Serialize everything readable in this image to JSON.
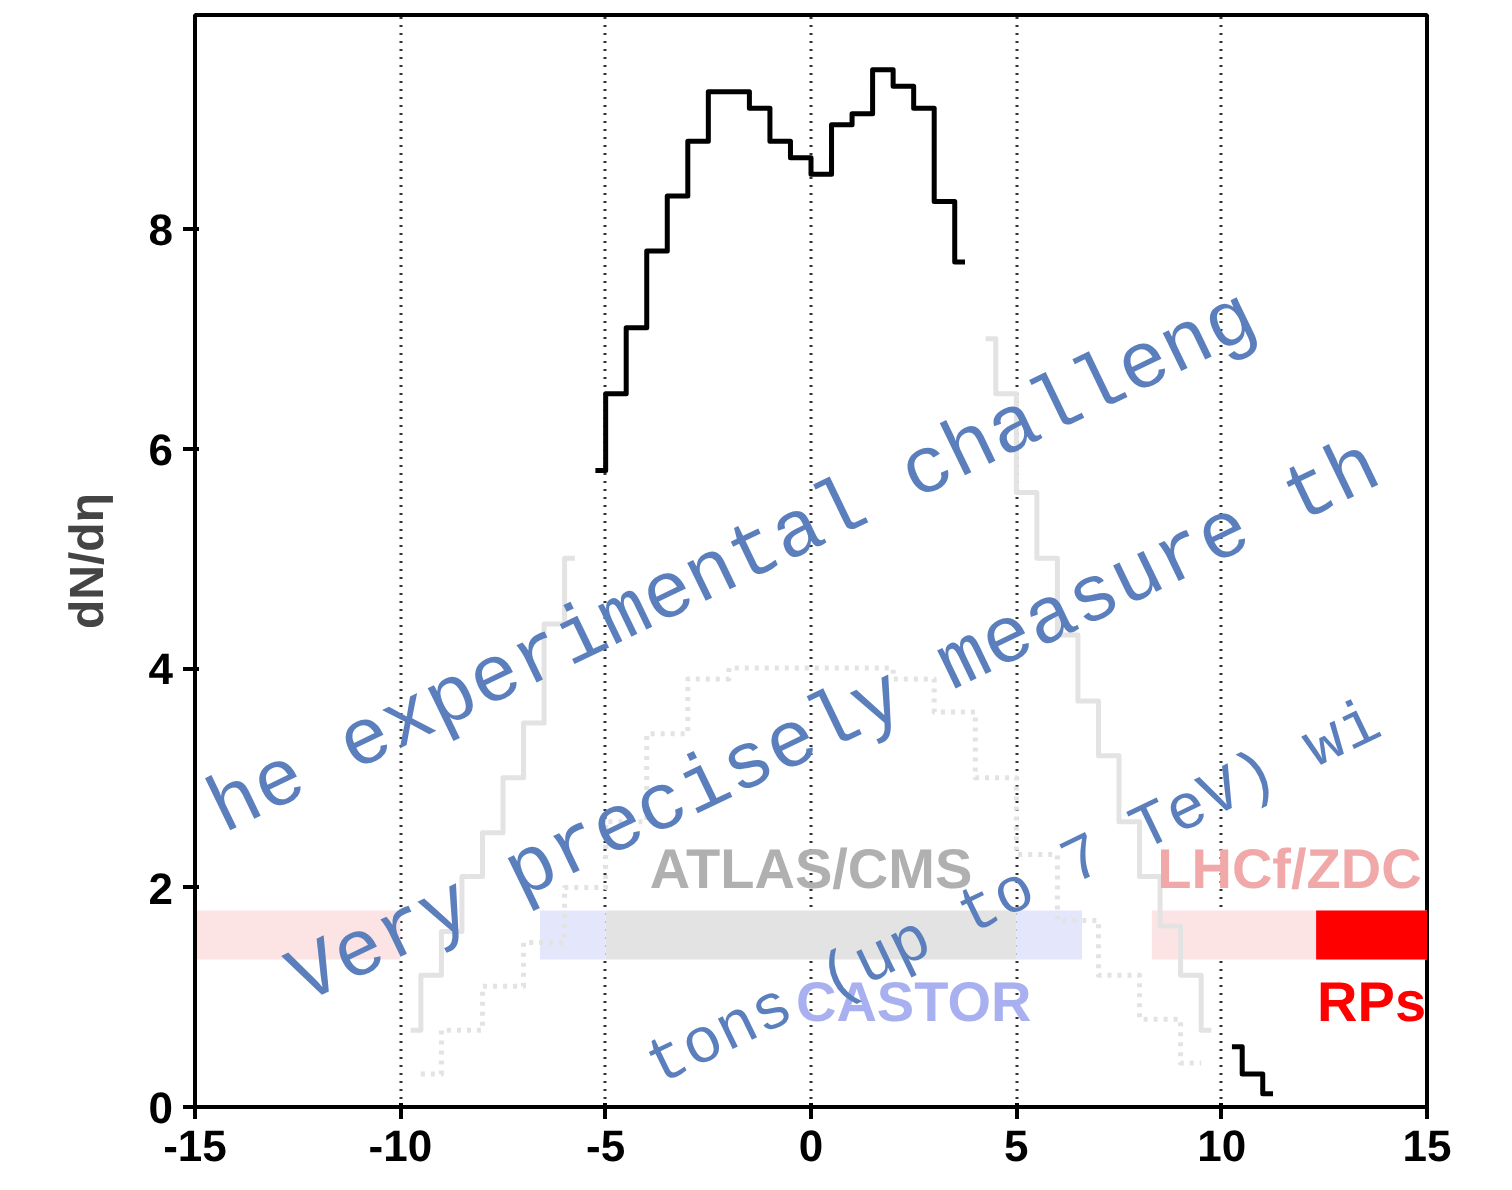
{
  "chart_data": {
    "type": "step",
    "ylabel": "dN/dη",
    "xlim": [
      -15,
      15
    ],
    "ylim": [
      0,
      9.95
    ],
    "xticks": [
      -15,
      -10,
      -5,
      0,
      5,
      10,
      15
    ],
    "yticks": [
      0,
      2,
      4,
      6,
      8
    ],
    "grid": "x",
    "series": [
      {
        "color": "#e3e3e3",
        "x": [
          -9.75,
          -9.25,
          -8.75,
          -8.25,
          -7.75,
          -7.25,
          -6.75,
          -6.25,
          -5.75,
          4.25,
          4.75,
          5.25,
          5.75,
          6.25,
          6.75,
          7.25,
          7.75,
          8.25,
          8.75,
          9.25,
          9.75
        ],
        "values": [
          0.7,
          1.2,
          1.6,
          2.1,
          2.5,
          3.0,
          3.5,
          4.4,
          5.0,
          7.0,
          6.5,
          5.6,
          5.0,
          4.3,
          3.7,
          3.2,
          2.6,
          2.1,
          1.65,
          1.2,
          0.7
        ]
      },
      {
        "color": "#e3e3e3",
        "line_style": "dotted",
        "x": [
          -9.5,
          -8.5,
          -7.5,
          -6.5,
          -5.5,
          -4.5,
          -3.5,
          -2.5,
          -1.5,
          -0.5,
          0.5,
          1.5,
          2.5,
          3.5,
          4.5,
          5.5,
          6.5,
          7.5,
          8.5,
          9.5
        ],
        "values": [
          0.3,
          0.7,
          1.1,
          1.5,
          2.0,
          2.6,
          3.4,
          3.9,
          4.0,
          4.0,
          4.0,
          4.0,
          3.9,
          3.6,
          3.0,
          2.3,
          1.7,
          1.2,
          0.8,
          0.4
        ]
      },
      {
        "color": "#000000",
        "x": [
          -5.25,
          -4.75,
          -4.25,
          -3.75,
          -3.25,
          -2.75,
          -2.25,
          -1.75,
          -1.25,
          -0.75,
          -0.25,
          0.25,
          0.75,
          1.25,
          1.75,
          2.25,
          2.75,
          3.25,
          3.75
        ],
        "values": [
          5.8,
          6.5,
          7.1,
          7.8,
          8.3,
          8.8,
          9.25,
          9.25,
          9.1,
          8.8,
          8.65,
          8.5,
          8.95,
          9.05,
          9.45,
          9.3,
          9.1,
          8.25,
          7.7
        ]
      },
      {
        "color": "#000000",
        "x": [
          10.25,
          10.75,
          11.25
        ],
        "values": [
          0.55,
          0.3,
          0.12
        ]
      }
    ],
    "bands": [
      {
        "axis": "x",
        "from": -15,
        "to": -10,
        "color": "#fde4e4"
      },
      {
        "axis": "x",
        "from": -6.6,
        "to": -5,
        "color": "#e4e6fb"
      },
      {
        "axis": "x",
        "from": -5,
        "to": 5,
        "color": "#e3e3e3",
        "label": "ATLAS/CMS"
      },
      {
        "axis": "x",
        "from": 5,
        "to": 6.6,
        "color": "#e4e6fb",
        "label": "CASTOR"
      },
      {
        "axis": "x",
        "from": 8.3,
        "to": 15,
        "color": "#fde4e4",
        "label": "LHCf/ZDC"
      },
      {
        "axis": "x",
        "from": 12.3,
        "to": 15,
        "color": "#ff0000",
        "label": "RPs"
      }
    ],
    "annotations": [
      "he experimental challeng",
      "Very precisely measure th",
      "tons (up to 7 TeV) wi"
    ]
  }
}
